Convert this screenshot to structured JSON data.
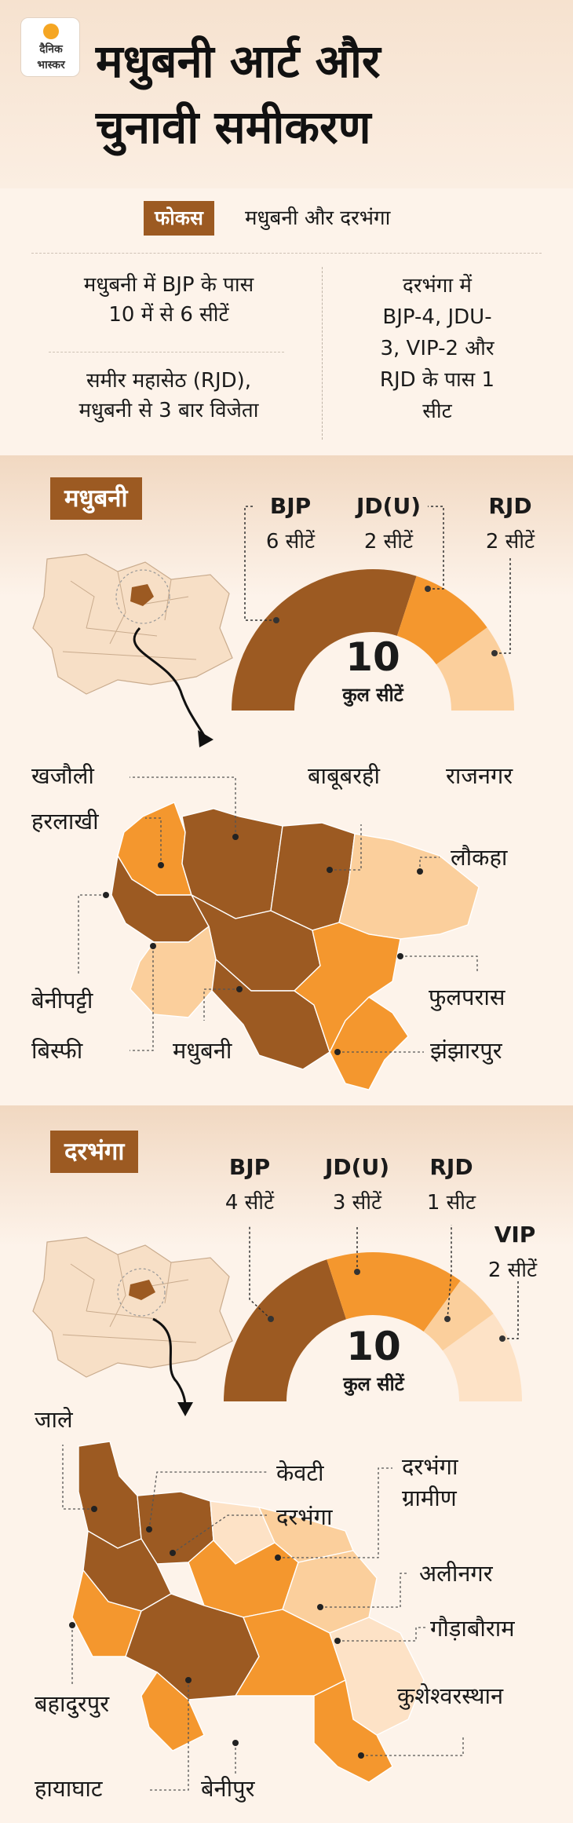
{
  "header": {
    "logo_line1": "दैनिक",
    "logo_line2": "भास्कर",
    "title_line1": "मधुबनी आर्ट और",
    "title_line2": "चुनावी समीकरण"
  },
  "focus": {
    "label": "फोकस",
    "text": "मधुबनी और दरभंगा"
  },
  "facts": {
    "madhubani_bjp": [
      "मधुबनी में BJP के पास",
      "10 में से 6 सीटें"
    ],
    "sameer": [
      "समीर महासेठ (RJD),",
      "मधुबनी से 3 बार विजेता"
    ],
    "darbhanga": [
      "दरभंगा में",
      "BJP-4, JDU-",
      "3, VIP-2 और",
      "RJD के पास 1",
      "सीट"
    ]
  },
  "colors": {
    "dark": "#9c5a22",
    "medium": "#f4972e",
    "light": "#fbcf9c",
    "lightest": "#fde2c6",
    "label_bg": "#9c5a22"
  },
  "madhubani": {
    "label": "मधुबनी",
    "total_number": "10",
    "total_label": "कुल सीटें",
    "parties": [
      {
        "name": "BJP",
        "seats_text": "6 सीटें",
        "seats": 6,
        "color": "#9c5a22"
      },
      {
        "name": "JD(U)",
        "seats_text": "2 सीटें",
        "seats": 2,
        "color": "#f4972e"
      },
      {
        "name": "RJD",
        "seats_text": "2 सीटें",
        "seats": 2,
        "color": "#fbcf9c"
      }
    ],
    "constituencies": [
      "खजौली",
      "हरलाखी",
      "बाबूबरही",
      "राजनगर",
      "लौकहा",
      "बेनीपट्टी",
      "फुलपरास",
      "बिस्फी",
      "मधुबनी",
      "झंझारपुर"
    ]
  },
  "darbhanga": {
    "label": "दरभंगा",
    "total_number": "10",
    "total_label": "कुल सीटें",
    "parties": [
      {
        "name": "BJP",
        "seats_text": "4 सीटें",
        "seats": 4,
        "color": "#9c5a22"
      },
      {
        "name": "JD(U)",
        "seats_text": "3 सीटें",
        "seats": 3,
        "color": "#f4972e"
      },
      {
        "name": "RJD",
        "seats_text": "1 सीट",
        "seats": 1,
        "color": "#fbcf9c"
      },
      {
        "name": "VIP",
        "seats_text": "2 सीटें",
        "seats": 2,
        "color": "#fde2c6"
      }
    ],
    "constituencies": [
      "जाले",
      "केवटी",
      "दरभंगा",
      "दरभंगा ग्रामीण",
      "अलीनगर",
      "गौड़ाबौराम",
      "बहादुरपुर",
      "कुशेश्वरस्थान",
      "हायाघाट",
      "बेनीपुर"
    ]
  }
}
